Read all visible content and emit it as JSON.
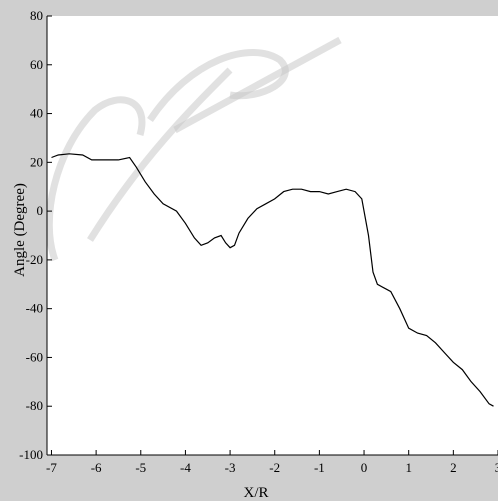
{
  "chart_data": {
    "type": "line",
    "xlabel": "X/R",
    "ylabel": "Angle (Degree)",
    "xlim": [
      -7.1,
      3
    ],
    "ylim": [
      -100,
      80
    ],
    "x_ticks": [
      -7,
      -6,
      -5,
      -4,
      -3,
      -2,
      -1,
      0,
      1,
      2,
      3
    ],
    "y_ticks": [
      80,
      60,
      40,
      20,
      0,
      -20,
      -40,
      -60,
      -80,
      -100
    ],
    "grid": false,
    "line_color": "#000000",
    "series": [
      {
        "x": [
          -7.0,
          -6.85,
          -6.6,
          -6.3,
          -6.1,
          -5.8,
          -5.5,
          -5.25,
          -5.1,
          -4.9,
          -4.7,
          -4.5,
          -4.2,
          -4.0,
          -3.8,
          -3.65,
          -3.5,
          -3.35,
          -3.2,
          -3.1,
          -3.0,
          -2.9,
          -2.8,
          -2.6,
          -2.4,
          -2.2,
          -2.0,
          -1.8,
          -1.6,
          -1.4,
          -1.2,
          -1.0,
          -0.8,
          -0.6,
          -0.4,
          -0.2,
          -0.05,
          0.1,
          0.2,
          0.3,
          0.5,
          0.6,
          0.8,
          1.0,
          1.2,
          1.4,
          1.6,
          1.8,
          2.0,
          2.2,
          2.4,
          2.6,
          2.8,
          2.9
        ],
        "y": [
          22,
          23,
          23.5,
          23,
          21,
          21,
          21,
          22,
          18,
          12,
          7,
          3,
          0,
          -5,
          -11,
          -14,
          -13,
          -11,
          -10,
          -13,
          -15,
          -14,
          -9,
          -3,
          1,
          3,
          5,
          8,
          9,
          9,
          8,
          8,
          7,
          8,
          9,
          8,
          5,
          -10,
          -25,
          -30,
          -32,
          -33,
          -40,
          -48,
          -50,
          -51,
          -54,
          -58,
          -62,
          -65,
          -70,
          -74,
          -79,
          -80
        ]
      }
    ]
  }
}
